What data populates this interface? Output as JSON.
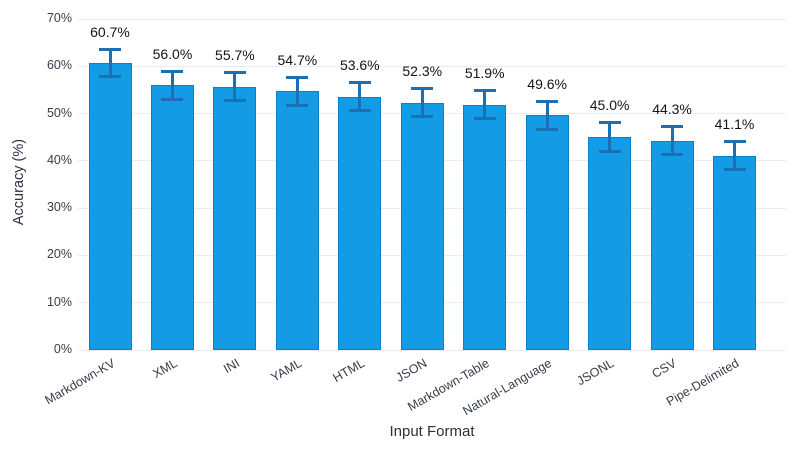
{
  "chart_data": {
    "type": "bar",
    "title": "",
    "xlabel": "Input Format",
    "ylabel": "Accuracy (%)",
    "categories": [
      "Markdown-KV",
      "XML",
      "INI",
      "YAML",
      "HTML",
      "JSON",
      "Markdown-Table",
      "Natural-Language",
      "JSONL",
      "CSV",
      "Pipe-Delimited"
    ],
    "values": [
      60.7,
      56.0,
      55.7,
      54.7,
      53.6,
      52.3,
      51.9,
      49.6,
      45.0,
      44.3,
      41.1
    ],
    "value_labels": [
      "60.7%",
      "56.0%",
      "55.7%",
      "54.7%",
      "53.6%",
      "52.3%",
      "51.9%",
      "49.6%",
      "45.0%",
      "44.3%",
      "41.1%"
    ],
    "errors": [
      3.0,
      3.1,
      3.1,
      3.0,
      3.1,
      3.1,
      3.1,
      3.1,
      3.2,
      3.1,
      3.1
    ],
    "ylim": [
      0,
      70
    ],
    "ytick_step": 10,
    "ytick_labels": [
      "0%",
      "10%",
      "20%",
      "30%",
      "40%",
      "50%",
      "60%",
      "70%"
    ],
    "grid": true,
    "legend": "none",
    "error_bar_style": "symmetric-caps",
    "colors": {
      "bar_fill": "#149be5",
      "bar_border": "#0d7fc4",
      "error_bar": "#1c6fb2",
      "gridline": "#e9ecf2",
      "value_label": "#111418",
      "tick_label": "#363d4a",
      "axis_title": "#2a3140",
      "background": "#ffffff"
    }
  }
}
